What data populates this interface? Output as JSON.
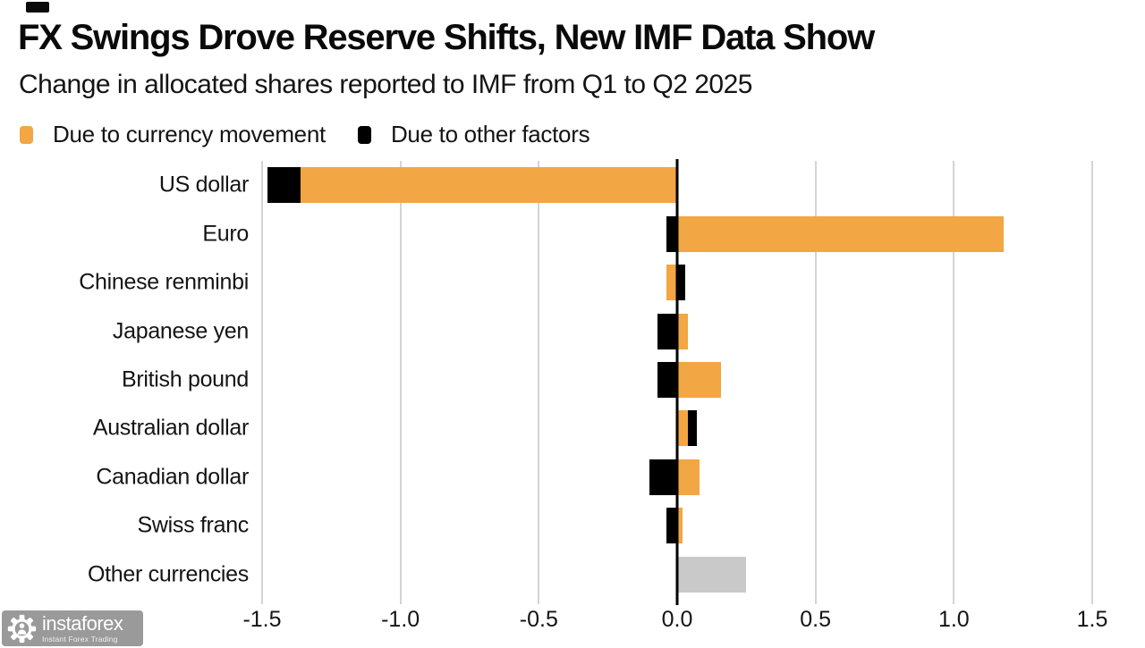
{
  "header": {
    "title": "FX Swings Drove Reserve Shifts, New IMF Data Show",
    "subtitle": "Change in allocated shares reported to IMF from Q1 to Q2 2025"
  },
  "legend": [
    {
      "label": "Due to currency movement",
      "color": "#F2A644"
    },
    {
      "label": "Due to other factors",
      "color": "#000000"
    }
  ],
  "chart_data": {
    "type": "bar",
    "orientation": "horizontal",
    "stacked": true,
    "grid": "vertical",
    "gridline_color": "#d4d4d4",
    "categories": [
      "US dollar",
      "Euro",
      "Chinese renminbi",
      "Japanese yen",
      "British pound",
      "Australian dollar",
      "Canadian dollar",
      "Swiss franc",
      "Other currencies"
    ],
    "series": [
      {
        "name": "Due to currency movement",
        "color": "#F2A644",
        "values": [
          -1.36,
          1.18,
          -0.04,
          0.04,
          0.16,
          0.04,
          0.08,
          0.02,
          null
        ]
      },
      {
        "name": "Due to other factors",
        "color": "#000000",
        "values": [
          -0.12,
          -0.04,
          0.03,
          -0.07,
          -0.07,
          0.03,
          -0.1,
          -0.04,
          null
        ]
      },
      {
        "name": "Other currencies net",
        "color": "#c9c9c9",
        "values": [
          null,
          null,
          null,
          null,
          null,
          null,
          null,
          null,
          0.25
        ]
      }
    ],
    "xlabel": "",
    "ylabel": "",
    "xlim": [
      -1.5,
      1.5
    ],
    "xticks": [
      -1.5,
      -1.0,
      -0.5,
      0.0,
      0.5,
      1.0,
      1.5
    ],
    "xtick_labels": [
      "-1.5",
      "-1.0",
      "-0.5",
      "0.0",
      "0.5",
      "1.0",
      "1.5"
    ]
  },
  "watermark": {
    "name": "instaforex",
    "tagline": "Instant Forex Trading"
  }
}
